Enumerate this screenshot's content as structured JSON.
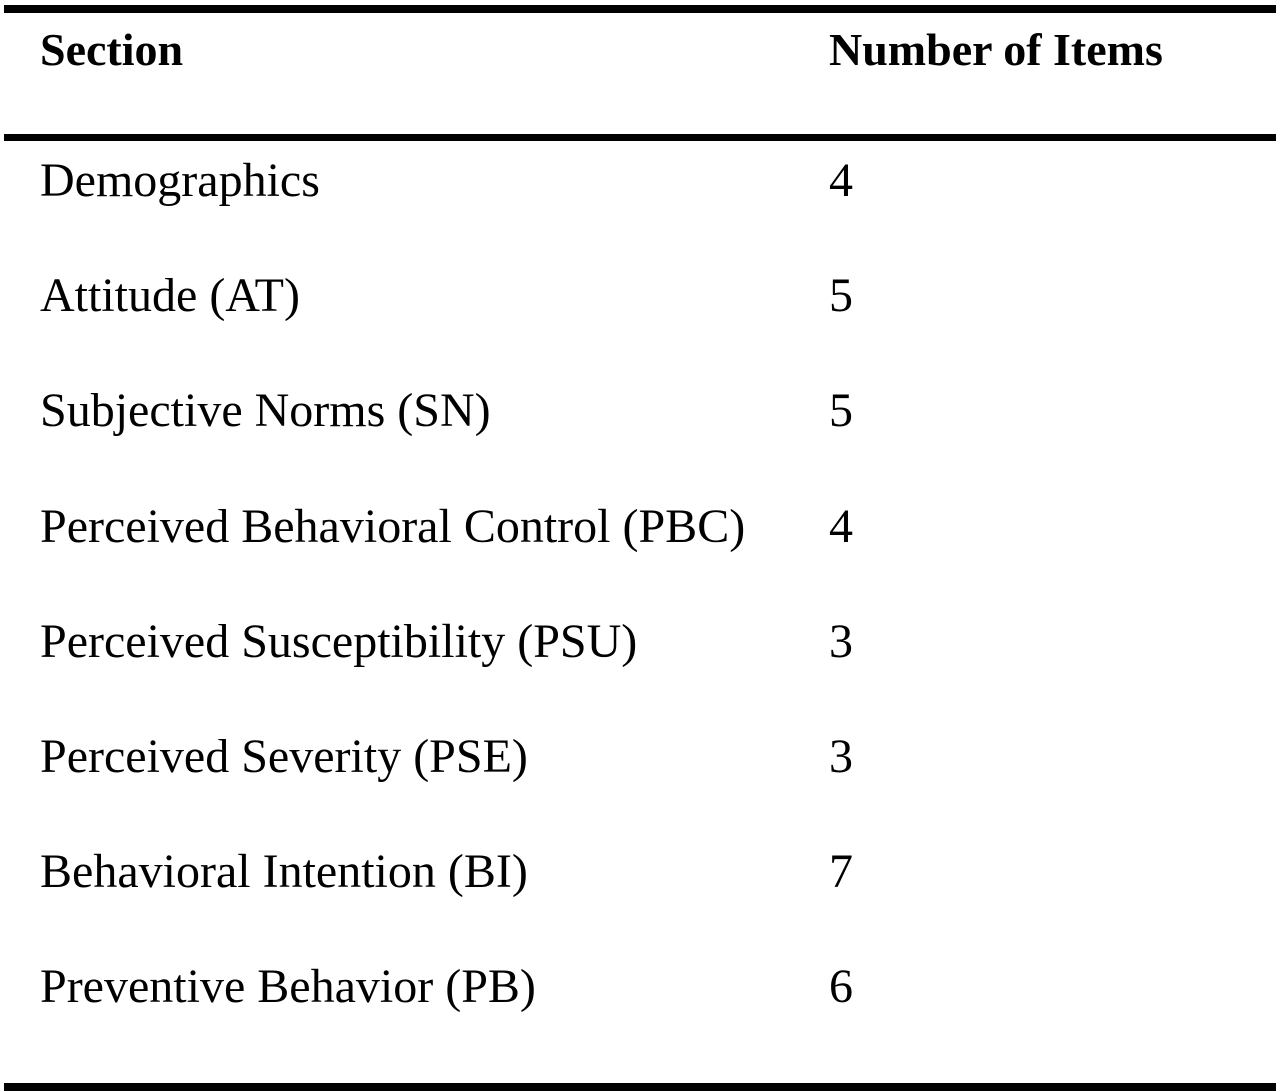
{
  "table": {
    "headers": {
      "section": "Section",
      "count": "Number of Items"
    },
    "rows": [
      {
        "section": "Demographics",
        "count": "4"
      },
      {
        "section": "Attitude (AT)",
        "count": "5"
      },
      {
        "section": "Subjective Norms (SN)",
        "count": "5"
      },
      {
        "section": "Perceived Behavioral Control (PBC)",
        "count": "4"
      },
      {
        "section": "Perceived Susceptibility (PSU)",
        "count": "3"
      },
      {
        "section": "Perceived Severity (PSE)",
        "count": "3"
      },
      {
        "section": "Behavioral Intention (BI)",
        "count": "7"
      },
      {
        "section": "Preventive Behavior (PB)",
        "count": "6"
      }
    ]
  }
}
